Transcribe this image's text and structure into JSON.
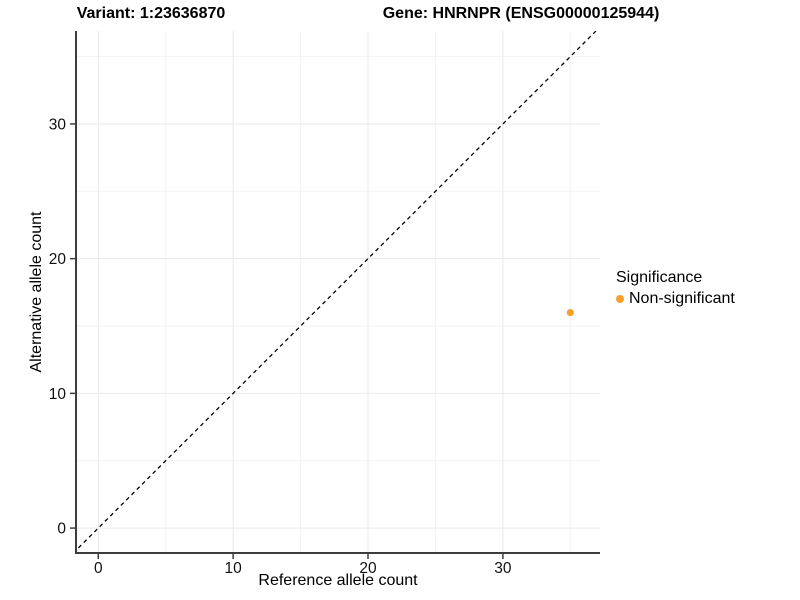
{
  "header": {
    "title_variant": "Variant: 1:23636870",
    "title_gene": "Gene: HNRNPR (ENSG00000125944)"
  },
  "chart_data": {
    "type": "scatter",
    "title": "Variant: 1:23636870   Gene: HNRNPR (ENSG00000125944)",
    "xlabel": "Reference allele count",
    "ylabel": "Alternative allele count",
    "xlim": [
      -1.65,
      37.2
    ],
    "ylim": [
      -1.85,
      36.9
    ],
    "xticks": [
      0,
      10,
      20,
      30
    ],
    "yticks": [
      0,
      10,
      20,
      30
    ],
    "minor_xticks": [
      5,
      15,
      25,
      35
    ],
    "minor_yticks": [
      5,
      15,
      25,
      35
    ],
    "grid": "major+minor",
    "legend_position": "right",
    "identity_line": {
      "style": "dashed",
      "slope": 1,
      "intercept": 0,
      "color": "#000000"
    },
    "series": [
      {
        "name": "Non-significant",
        "color": "#F9A02C",
        "points": [
          {
            "x": 35,
            "y": 16
          }
        ]
      }
    ]
  },
  "legend": {
    "title": "Significance",
    "entries": [
      {
        "label": "Non-significant",
        "color": "#F9A02C"
      }
    ]
  },
  "colors": {
    "point": "#F9A02C",
    "axis": "#3d3d3d",
    "tick_text": "#111111",
    "grid_major": "#e9e9e9",
    "grid_minor": "#f3f3f3"
  }
}
